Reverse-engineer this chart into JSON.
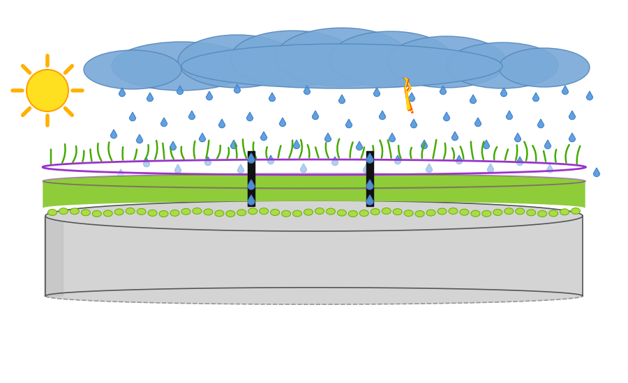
{
  "bg_color": "#ffffff",
  "substrate_color": "#d4d4d4",
  "substrate_side_color": "#c0c0c0",
  "substrate_edge_color": "#555555",
  "sealant_color": "#8fcc3a",
  "sealant_dark_color": "#6aaa00",
  "sealant_edge_color": "#5a9900",
  "coating_fill_color": "#f0f8ee",
  "coating_border_color": "#9933cc",
  "cloud_color": "#7aaad8",
  "cloud_edge_color": "#5588bb",
  "rain_color": "#5599dd",
  "rain_edge_color": "#2255aa",
  "sun_color": "#FFE020",
  "sun_ray_color": "#FFB000",
  "lightning_yellow": "#FFD700",
  "lightning_red": "#FF4400",
  "crack_color": "#111111",
  "grass_color": "#44aa00",
  "bubble_color": "#aadd44",
  "bubble_edge_color": "#66aa00",
  "fig_width": 9.0,
  "fig_height": 5.5,
  "dpi": 100
}
